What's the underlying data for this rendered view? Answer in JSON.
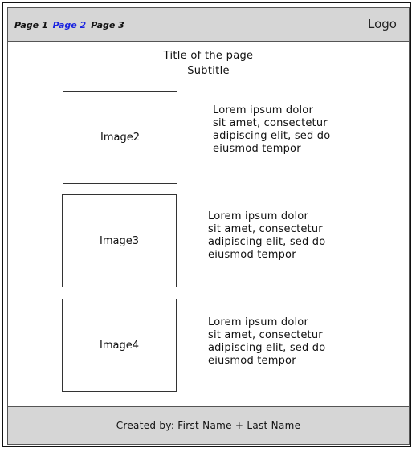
{
  "header": {
    "nav": [
      {
        "label": "Page 1",
        "active": false
      },
      {
        "label": "Page 2",
        "active": true
      },
      {
        "label": "Page 3",
        "active": false
      }
    ],
    "logo": "Logo",
    "active_color": "#1a24e0"
  },
  "main": {
    "title": "Title of the page",
    "subtitle": "Subtitle",
    "rows": [
      {
        "image_label": "Image2",
        "text": "Lorem ipsum dolor\nsit amet, consectetur\n adipiscing elit, sed do\neiusmod tempor"
      },
      {
        "image_label": "Image3",
        "text": "Lorem ipsum dolor\nsit amet, consectetur\n adipiscing elit, sed do\neiusmod tempor"
      },
      {
        "image_label": "Image4",
        "text": "Lorem ipsum dolor\nsit amet, consectetur\n adipiscing elit, sed do\neiusmod tempor"
      }
    ]
  },
  "footer": {
    "text": "Created by: First Name + Last Name"
  }
}
